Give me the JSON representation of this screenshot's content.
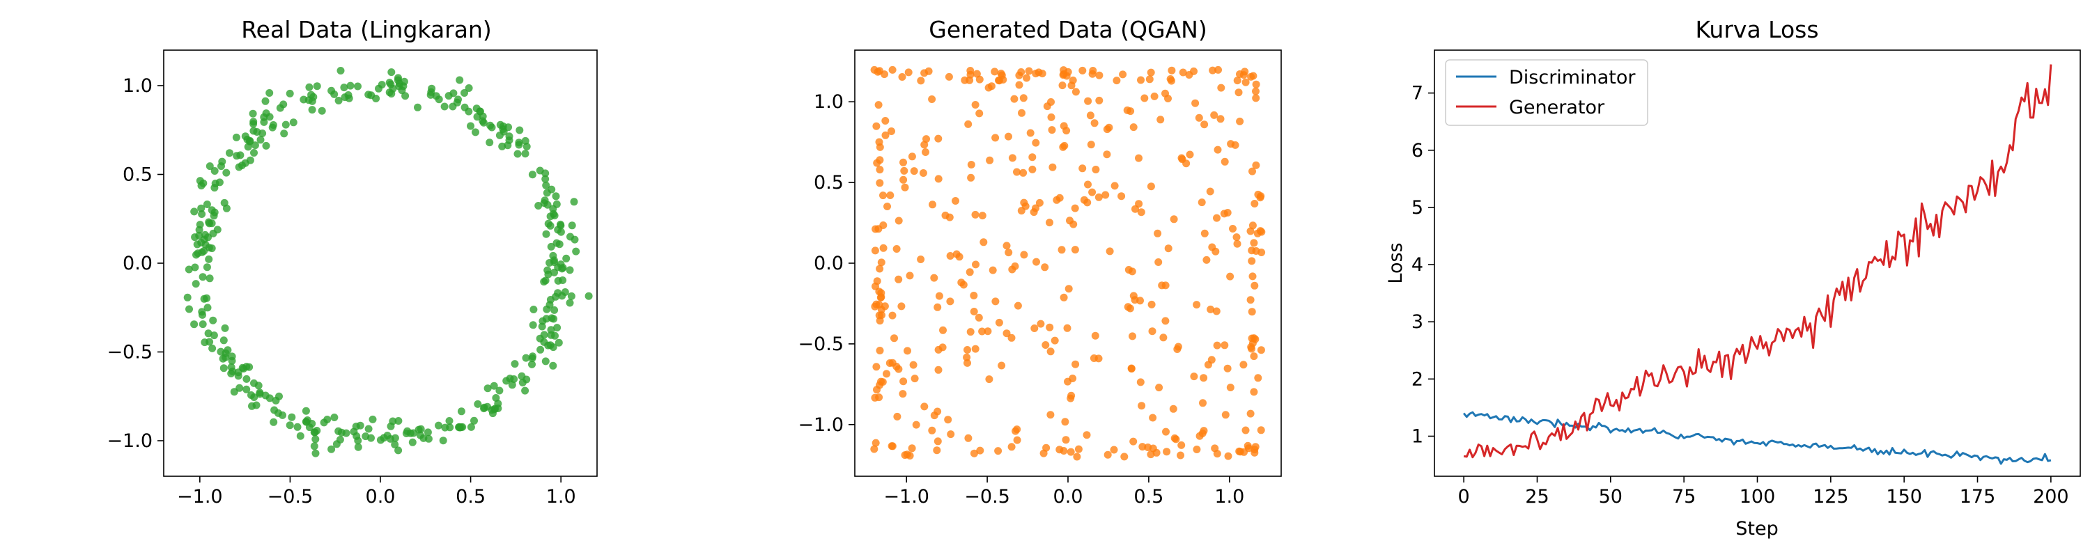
{
  "chart_data": [
    {
      "type": "scatter",
      "title": "Real Data (Lingkaran)",
      "xlabel": "",
      "ylabel": "",
      "xlim": [
        -1.2,
        1.2
      ],
      "ylim": [
        -1.2,
        1.2
      ],
      "xticks": [
        -1.0,
        -0.5,
        0.0,
        0.5,
        1.0
      ],
      "yticks": [
        -1.0,
        -0.5,
        0.0,
        0.5,
        1.0
      ],
      "xtick_labels": [
        "−1.0",
        "−0.5",
        "0.0",
        "0.5",
        "1.0"
      ],
      "ytick_labels": [
        "−1.0",
        "−0.5",
        "0.0",
        "0.5",
        "1.0"
      ],
      "grid": false,
      "color": "#2ca02c",
      "description": "~400 points distributed around the unit circle (radius ≈ 1.0, noise ≈ 0.05)",
      "generator": {
        "shape": "ring",
        "n": 400,
        "radius": 1.0,
        "noise": 0.045,
        "seed": 7
      }
    },
    {
      "type": "scatter",
      "title": "Generated Data (QGAN)",
      "xlabel": "",
      "ylabel": "",
      "xlim": [
        -1.32,
        1.32
      ],
      "ylim": [
        -1.32,
        1.32
      ],
      "xticks": [
        -1.0,
        -0.5,
        0.0,
        0.5,
        1.0
      ],
      "yticks": [
        -1.0,
        -0.5,
        0.0,
        0.5,
        1.0
      ],
      "xtick_labels": [
        "−1.0",
        "−0.5",
        "0.0",
        "0.5",
        "1.0"
      ],
      "ytick_labels": [
        "−1.0",
        "−0.5",
        "0.0",
        "0.5",
        "1.0"
      ],
      "grid": false,
      "color": "#ff7f0e",
      "description": "~450 points roughly uniform over [-1.2, 1.2]², denser along the square's edges",
      "generator": {
        "shape": "square",
        "n": 450,
        "half_width": 1.2,
        "edge_fraction": 0.35,
        "seed": 11
      }
    },
    {
      "type": "line",
      "title": "Kurva Loss",
      "xlabel": "Step",
      "ylabel": "Loss",
      "xlim": [
        -10,
        210
      ],
      "ylim": [
        0.3,
        7.75
      ],
      "xticks": [
        0,
        25,
        50,
        75,
        100,
        125,
        150,
        175,
        200
      ],
      "yticks": [
        1,
        2,
        3,
        4,
        5,
        6,
        7
      ],
      "xtick_labels": [
        "0",
        "25",
        "50",
        "75",
        "100",
        "125",
        "150",
        "175",
        "200"
      ],
      "ytick_labels": [
        "1",
        "2",
        "3",
        "4",
        "5",
        "6",
        "7"
      ],
      "grid": false,
      "legend": "top-left",
      "x": [
        0,
        20,
        40,
        60,
        80,
        100,
        120,
        140,
        160,
        180,
        200
      ],
      "series": [
        {
          "name": "Discriminator",
          "color": "#1f77b4",
          "values": [
            1.4,
            1.3,
            1.18,
            1.08,
            0.98,
            0.9,
            0.82,
            0.75,
            0.68,
            0.62,
            0.58
          ],
          "noise": 0.035,
          "seed": 3
        },
        {
          "name": "Generator",
          "color": "#d62728",
          "values": [
            0.65,
            0.85,
            1.3,
            1.9,
            2.2,
            2.6,
            3.1,
            3.9,
            4.8,
            5.6,
            7.5
          ],
          "noise": 0.18,
          "seed": 5
        }
      ]
    }
  ]
}
